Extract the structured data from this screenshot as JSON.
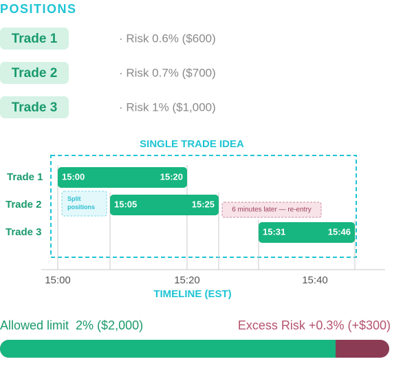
{
  "header": {
    "title": "POSITIONS"
  },
  "positions": [
    {
      "label": "Trade 1",
      "risk": "· Risk 0.6% ($600)"
    },
    {
      "label": "Trade 2",
      "risk": "· Risk 0.7% ($700)"
    },
    {
      "label": "Trade 3",
      "risk": "· Risk 1% ($1,000)"
    }
  ],
  "timeline": {
    "title": "SINGLE TRADE IDEA",
    "rows": [
      {
        "label": "Trade 1",
        "start": "15:00",
        "end": "15:20"
      },
      {
        "label": "Trade 2",
        "start": "15:05",
        "end": "15:25"
      },
      {
        "label": "Trade 3",
        "start": "15:31",
        "end": "15:46"
      }
    ],
    "split_note": "Split positions",
    "reentry_note": "6 minutes later — re-entry",
    "ticks": [
      "15:00",
      "15:20",
      "15:40"
    ],
    "axis_title": "TIMELINE (EST)"
  },
  "footer": {
    "allowed": "Allowed limit  2% ($2,000)",
    "excess": "Excess Risk +0.3% (+$300)"
  }
}
